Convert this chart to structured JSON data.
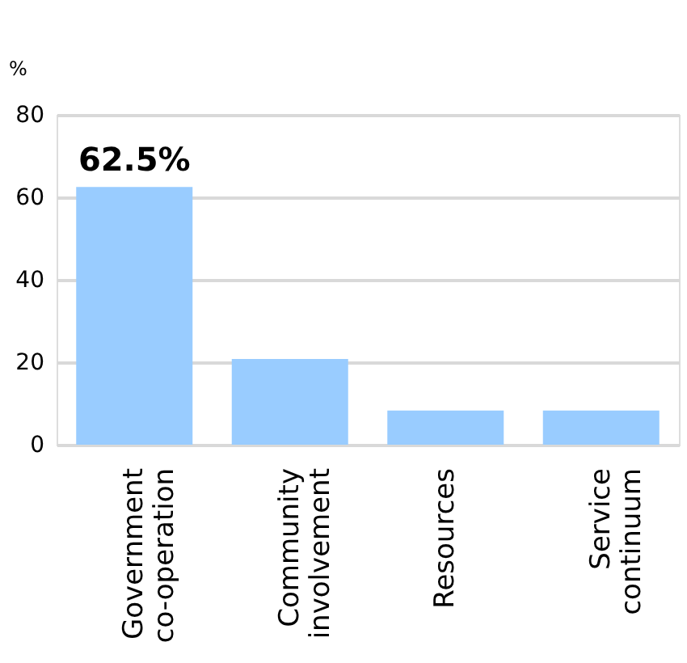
{
  "chart_data": {
    "type": "bar",
    "ylabel": "%",
    "categories": [
      "Government co-operation",
      "Community involvement",
      "Resources",
      "Service continuum"
    ],
    "values": [
      62.5,
      20.8,
      8.3,
      8.3
    ],
    "value_labels": [
      "62.5%",
      null,
      null,
      null
    ],
    "color": "#99ccff",
    "ylim": [
      0,
      80
    ],
    "yticks": [
      0,
      20,
      40,
      60,
      80
    ],
    "grid": "y"
  }
}
